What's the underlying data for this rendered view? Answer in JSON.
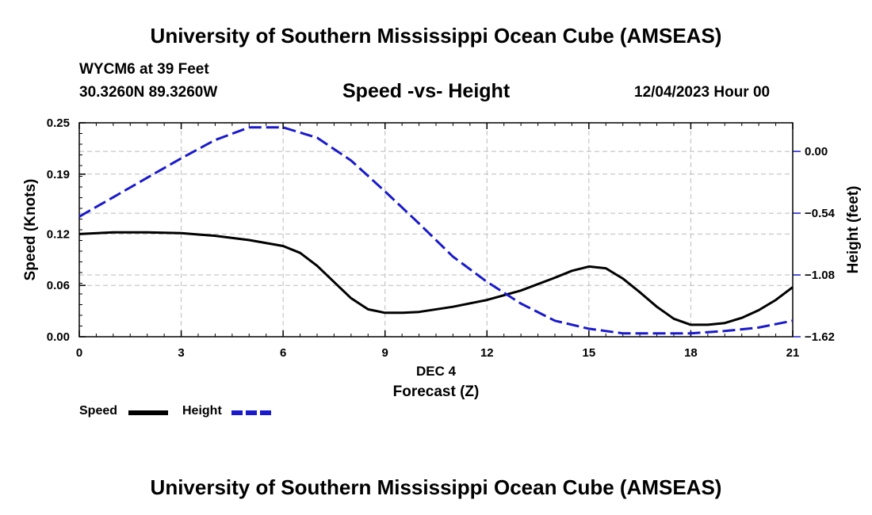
{
  "header": {
    "title": "University of Southern Mississippi Ocean Cube (AMSEAS)",
    "station": "WYCM6 at 39 Feet",
    "coords": "30.3260N  89.3260W",
    "subtitle": "Speed -vs- Height",
    "datetime": "12/04/2023 Hour 00"
  },
  "footer": {
    "title": "University of Southern Mississippi Ocean Cube (AMSEAS)"
  },
  "colors": {
    "speed": "#000000",
    "height": "#1a1acc",
    "grid": "#bbbbbb"
  },
  "chart_data": {
    "type": "line",
    "title": "Speed -vs- Height",
    "xlabel": "Forecast (Z)",
    "xlabel_date": "DEC 4",
    "ylabel": "Speed (Knots)",
    "ylabel_right": "Height (feet)",
    "xlim": [
      0,
      21
    ],
    "ylim": [
      0,
      0.25
    ],
    "ylim_right": [
      -1.62,
      0.25
    ],
    "x_ticks": [
      "0",
      "3",
      "6",
      "9",
      "12",
      "15",
      "18",
      "21"
    ],
    "y_ticks": [
      "0.00",
      "0.06",
      "0.12",
      "0.19",
      "0.25"
    ],
    "y_right_ticks": [
      "-1.62",
      "-1.08",
      "-0.54",
      "0.00"
    ],
    "legend_position": "bottom-left",
    "series": [
      {
        "name": "Speed",
        "axis": "left",
        "style": "solid",
        "x": [
          0,
          1,
          2,
          3,
          4,
          5,
          6,
          6.5,
          7,
          7.5,
          8,
          8.5,
          9,
          9.5,
          10,
          11,
          12,
          13,
          14,
          14.5,
          15,
          15.5,
          16,
          16.5,
          17,
          17.5,
          18,
          18.5,
          19,
          19.5,
          20,
          20.5,
          21
        ],
        "y": [
          0.12,
          0.122,
          0.122,
          0.121,
          0.118,
          0.113,
          0.106,
          0.098,
          0.083,
          0.064,
          0.045,
          0.032,
          0.028,
          0.028,
          0.029,
          0.035,
          0.043,
          0.054,
          0.069,
          0.077,
          0.082,
          0.08,
          0.068,
          0.052,
          0.035,
          0.021,
          0.014,
          0.014,
          0.016,
          0.022,
          0.031,
          0.043,
          0.058
        ]
      },
      {
        "name": "Height",
        "axis": "right",
        "style": "dashed",
        "x": [
          0,
          1,
          2,
          3,
          4,
          5,
          6,
          7,
          8,
          9,
          10,
          11,
          12,
          13,
          14,
          15,
          16,
          17,
          18,
          19,
          20,
          21
        ],
        "y": [
          -0.57,
          -0.4,
          -0.23,
          -0.06,
          0.1,
          0.21,
          0.21,
          0.12,
          -0.08,
          -0.35,
          -0.63,
          -0.92,
          -1.14,
          -1.33,
          -1.48,
          -1.55,
          -1.59,
          -1.59,
          -1.59,
          -1.57,
          -1.54,
          -1.48
        ]
      }
    ]
  }
}
